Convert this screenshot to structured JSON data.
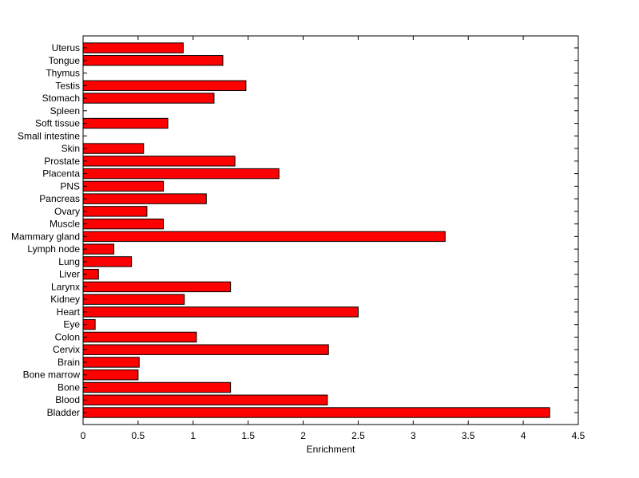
{
  "chart_data": {
    "type": "bar",
    "orientation": "horizontal",
    "categories": [
      "Bladder",
      "Blood",
      "Bone",
      "Bone marrow",
      "Brain",
      "Cervix",
      "Colon",
      "Eye",
      "Heart",
      "Kidney",
      "Larynx",
      "Liver",
      "Lung",
      "Lymph node",
      "Mammary gland",
      "Muscle",
      "Ovary",
      "Pancreas",
      "PNS",
      "Placenta",
      "Prostate",
      "Skin",
      "Small intestine",
      "Soft tissue",
      "Spleen",
      "Stomach",
      "Testis",
      "Thymus",
      "Tongue",
      "Uterus"
    ],
    "values": [
      4.24,
      2.22,
      1.34,
      0.5,
      0.51,
      2.23,
      1.03,
      0.11,
      2.5,
      0.92,
      1.34,
      0.14,
      0.44,
      0.28,
      3.29,
      0.73,
      0.58,
      1.12,
      0.73,
      1.78,
      1.38,
      0.55,
      0,
      0.77,
      0,
      1.19,
      1.48,
      0,
      1.27,
      0.91
    ],
    "xlabel": "Enrichment",
    "ylabel": "",
    "title": "",
    "xlim": [
      0,
      4.5
    ],
    "xticks": [
      "0",
      "0.5",
      "1",
      "1.5",
      "2",
      "2.5",
      "3",
      "3.5",
      "4",
      "4.5"
    ],
    "grid": false,
    "bar_color": "#ff0000",
    "edge_color": "#000000"
  }
}
